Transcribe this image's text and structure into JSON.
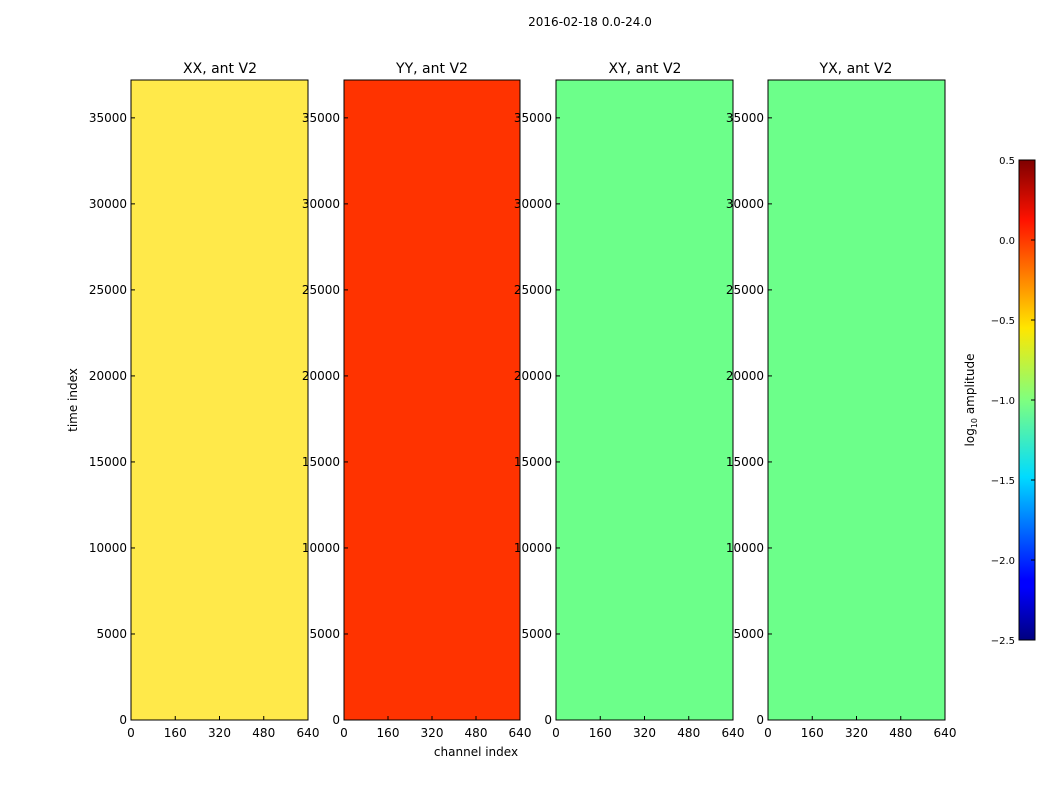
{
  "chart_data": {
    "type": "heatmap",
    "suptitle": "2016-02-18 0.0-24.0",
    "colormap": "jet",
    "panels": [
      {
        "title": "XX, ant V2",
        "mean_log_amp": -0.55
      },
      {
        "title": "YY, ant V2",
        "mean_log_amp": 0.1
      },
      {
        "title": "XY, ant V2",
        "mean_log_amp": -1.2
      },
      {
        "title": "YX, ant V2",
        "mean_log_amp": -1.2
      }
    ],
    "xlabel": "channel index",
    "ylabel": "time index",
    "xlim": [
      0,
      640
    ],
    "ylim": [
      0,
      37200
    ],
    "xticks": [
      0,
      160,
      320,
      480,
      640
    ],
    "yticks": [
      0,
      5000,
      10000,
      15000,
      20000,
      25000,
      30000,
      35000
    ],
    "colorbar": {
      "label": "log10 amplitude",
      "label_base": "log",
      "label_sub": "10",
      "label_rest": " amplitude",
      "range": [
        -2.5,
        0.5
      ],
      "ticks": [
        "0.5",
        "0.0",
        "−0.5",
        "−1.0",
        "−1.5",
        "−2.0",
        "−2.5"
      ],
      "tick_values": [
        0.5,
        0.0,
        -0.5,
        -1.0,
        -1.5,
        -2.0,
        -2.5
      ]
    }
  }
}
